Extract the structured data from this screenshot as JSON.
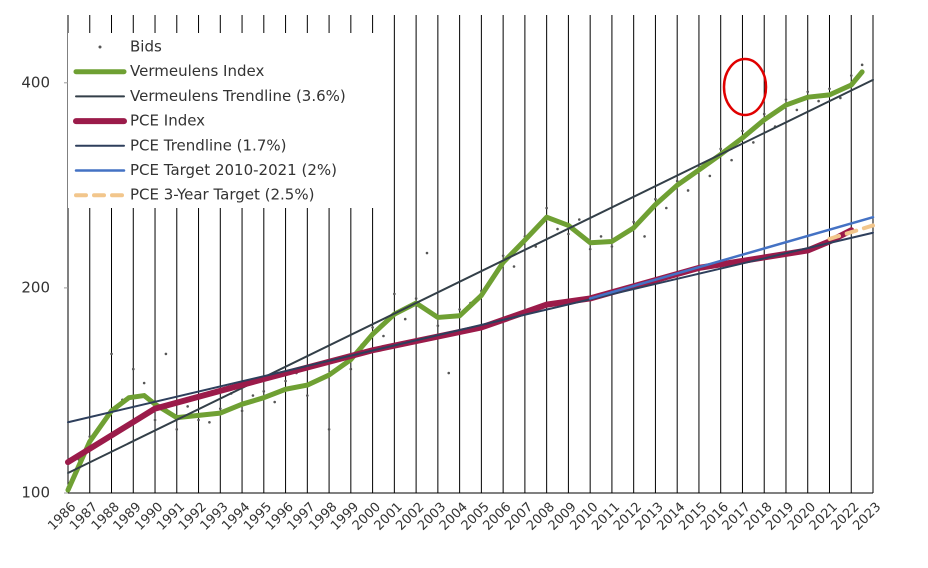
{
  "chart_data": {
    "type": "line",
    "log_y": true,
    "grid": true,
    "legend": "upper-left",
    "xlim": [
      1986,
      2023
    ],
    "xticks": [
      1986,
      1987,
      1988,
      1989,
      1990,
      1991,
      1992,
      1993,
      1994,
      1995,
      1996,
      1997,
      1998,
      1999,
      2000,
      2001,
      2002,
      2003,
      2004,
      2005,
      2006,
      2007,
      2008,
      2009,
      2010,
      2011,
      2012,
      2013,
      2014,
      2015,
      2016,
      2017,
      2018,
      2019,
      2020,
      2021,
      2022,
      2023
    ],
    "ylim": [
      100,
      503
    ],
    "yticks": [
      100,
      200,
      400
    ],
    "series": [
      {
        "name": "Bids",
        "type": "scatter",
        "color": "#555555",
        "x": [
          1986,
          1986.5,
          1987,
          1987.5,
          1988,
          1988.5,
          1989,
          1989.5,
          1990,
          1990.5,
          1991,
          1991.5,
          1992,
          1992.5,
          1993,
          1993.5,
          1994,
          1994.5,
          1995,
          1995.5,
          1996,
          1996.5,
          1997,
          1997.5,
          1998,
          1998.5,
          1999,
          1999.5,
          2000,
          2000.5,
          2001,
          2001.5,
          2002,
          2002.5,
          2003,
          2003.5,
          2004,
          2004.5,
          2005,
          2005.5,
          2006,
          2006.5,
          2007,
          2007.5,
          2008,
          2008.5,
          2009,
          2009.5,
          2010,
          2010.5,
          2011,
          2011.5,
          2012,
          2012.5,
          2013,
          2013.5,
          2014,
          2014.5,
          2015,
          2015.5,
          2016,
          2016.5,
          2017,
          2017.5,
          2018,
          2018.5,
          2019,
          2019.5,
          2020,
          2020.5,
          2021,
          2021.5,
          2022,
          2022.5
        ],
        "values": [
          102,
          112,
          121,
          125,
          160,
          137,
          152,
          145,
          128,
          160,
          124,
          134,
          128,
          127,
          133,
          140,
          132,
          139,
          141,
          136,
          146,
          150,
          139,
          155,
          124,
          158,
          152,
          165,
          175,
          170,
          196,
          180,
          193,
          225,
          176,
          150,
          186,
          190,
          198,
          205,
          223,
          215,
          238,
          230,
          262,
          244,
          240,
          252,
          228,
          238,
          230,
          240,
          250,
          238,
          270,
          262,
          287,
          278,
          300,
          292,
          320,
          308,
          340,
          327,
          360,
          345,
          378,
          365,
          388,
          376,
          392,
          380,
          410,
          425
        ]
      },
      {
        "name": "Vermeulens Index",
        "type": "line",
        "width": 5,
        "color": "#6fa033",
        "x": [
          1986,
          1987,
          1988,
          1988.8,
          1989.5,
          1990,
          1991,
          1992,
          1993,
          1994,
          1995,
          1996,
          1997,
          1998,
          1999,
          2000,
          2001,
          2002,
          2003,
          2004,
          2005,
          2006,
          2007,
          2008,
          2009,
          2010,
          2011,
          2012,
          2013,
          2014,
          2015,
          2016,
          2017,
          2018,
          2019,
          2020,
          2021,
          2022,
          2022.5
        ],
        "values": [
          101,
          119,
          132,
          138,
          139,
          135,
          129,
          130,
          131,
          135,
          138,
          142,
          144,
          149,
          157,
          171,
          183,
          190,
          181,
          182,
          195,
          218,
          235,
          254,
          247,
          233,
          234,
          245,
          265,
          283,
          298,
          314,
          332,
          353,
          371,
          381,
          384,
          397,
          415
        ]
      },
      {
        "name": "Vermeulens Trendline (3.6%)",
        "type": "line",
        "width": 2,
        "color": "#333f48",
        "x": [
          1986,
          2023
        ],
        "values": [
          107,
          404
        ]
      },
      {
        "name": "PCE Index",
        "type": "line",
        "width": 6,
        "color": "#9b1b4a",
        "x": [
          1986,
          1990,
          1995,
          2000,
          2005,
          2008,
          2010,
          2015,
          2020,
          2021,
          2022
        ],
        "values": [
          111,
          133,
          147,
          162,
          175,
          189,
          193,
          214,
          227,
          234,
          243
        ]
      },
      {
        "name": "PCE Trendline (1.7%)",
        "type": "line",
        "width": 2,
        "color": "#2e3f5c",
        "x": [
          1986,
          2023
        ],
        "values": [
          127,
          241
        ]
      },
      {
        "name": "PCE Target 2010-2021 (2%)",
        "type": "line",
        "width": 2.5,
        "color": "#4472c4",
        "x": [
          2010,
          2023
        ],
        "values": [
          193,
          254
        ]
      },
      {
        "name": "PCE 3-Year Target (2.5%)",
        "type": "line",
        "width": 4,
        "dashed": true,
        "color": "#f2c68c",
        "x": [
          2021,
          2023
        ],
        "values": [
          236,
          247
        ]
      }
    ]
  }
}
